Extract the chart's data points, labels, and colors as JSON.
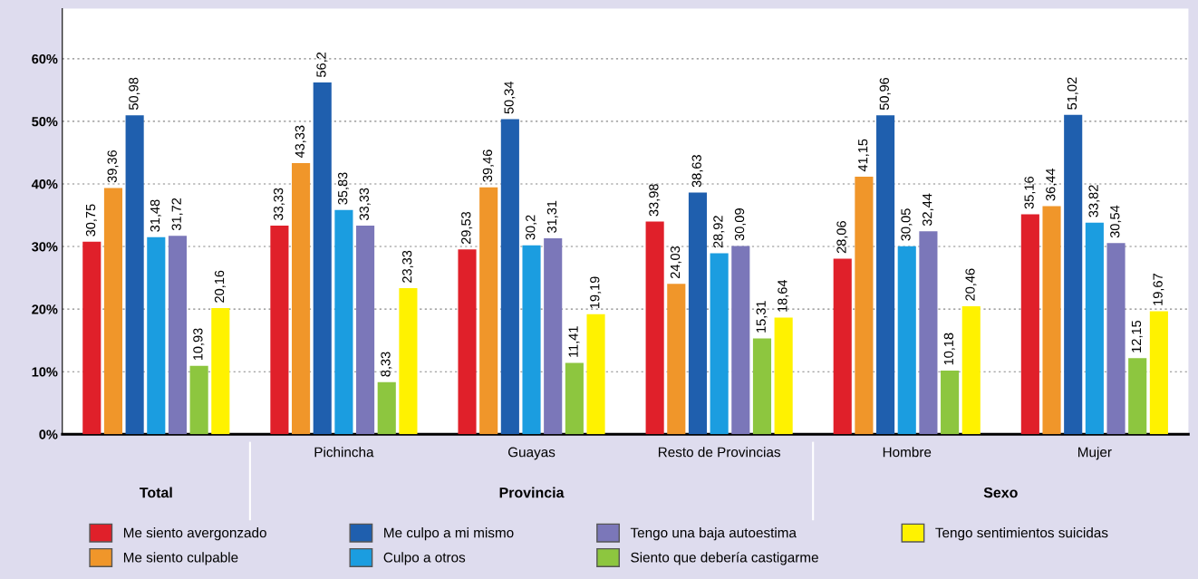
{
  "chart_data": {
    "type": "bar",
    "categories": [
      null,
      "Pichincha",
      "Guayas",
      "Resto de Provincias",
      "Hombre",
      "Mujer"
    ],
    "series": [
      {
        "name": "Me siento avergonzado",
        "color": "#e0202a",
        "values": [
          30.75,
          33.33,
          29.53,
          33.98,
          28.06,
          35.16
        ],
        "value_labels": [
          "30,75",
          "33,33",
          "29,53",
          "33,98",
          "28,06",
          "35,16"
        ]
      },
      {
        "name": "Me siento culpable",
        "color": "#f0962a",
        "values": [
          39.36,
          43.33,
          39.46,
          24.03,
          41.15,
          36.44
        ],
        "value_labels": [
          "39,36",
          "43,33",
          "39,46",
          "24,03",
          "41,15",
          "36,44"
        ]
      },
      {
        "name": "Me culpo a mi mismo",
        "color": "#1f5fae",
        "values": [
          50.98,
          56.2,
          50.34,
          38.63,
          50.96,
          51.02
        ],
        "value_labels": [
          "50,98",
          "56,2",
          "50,34",
          "38,63",
          "50,96",
          "51,02"
        ]
      },
      {
        "name": "Culpo a otros",
        "color": "#1b9de0",
        "values": [
          31.48,
          35.83,
          30.2,
          28.92,
          30.05,
          33.82
        ],
        "value_labels": [
          "31,48",
          "35,83",
          "30,2",
          "28,92",
          "30,05",
          "33,82"
        ]
      },
      {
        "name": "Tengo una baja autoestima",
        "color": "#7b77b9",
        "values": [
          31.72,
          33.33,
          31.31,
          30.09,
          32.44,
          30.54
        ],
        "value_labels": [
          "31,72",
          "33,33",
          "31,31",
          "30,09",
          "32,44",
          "30,54"
        ]
      },
      {
        "name": "Siento que debería castigarme",
        "color": "#8dc63f",
        "values": [
          10.93,
          8.33,
          11.41,
          15.31,
          10.18,
          12.15
        ],
        "value_labels": [
          "10,93",
          "8,33",
          "11,41",
          "15,31",
          "10,18",
          "12,15"
        ]
      },
      {
        "name": "Tengo sentimientos suicidas",
        "color": "#fff200",
        "values": [
          20.16,
          23.33,
          19.19,
          18.64,
          20.46,
          19.67
        ],
        "value_labels": [
          "20,16",
          "23,33",
          "19,19",
          "18,64",
          "20,46",
          "19,67"
        ]
      }
    ],
    "annotations": [
      "Total",
      "Provincia",
      "Sexo"
    ],
    "ylim": [
      0,
      68
    ],
    "yticks": [
      {
        "value": 0,
        "label": "0%"
      },
      {
        "value": 10,
        "label": "10%"
      },
      {
        "value": 20,
        "label": "20%"
      },
      {
        "value": 30,
        "label": "30%"
      },
      {
        "value": 40,
        "label": "40%"
      },
      {
        "value": 50,
        "label": "50%"
      },
      {
        "value": 60,
        "label": "60%"
      }
    ],
    "grid": "y",
    "legend": "bottom"
  }
}
